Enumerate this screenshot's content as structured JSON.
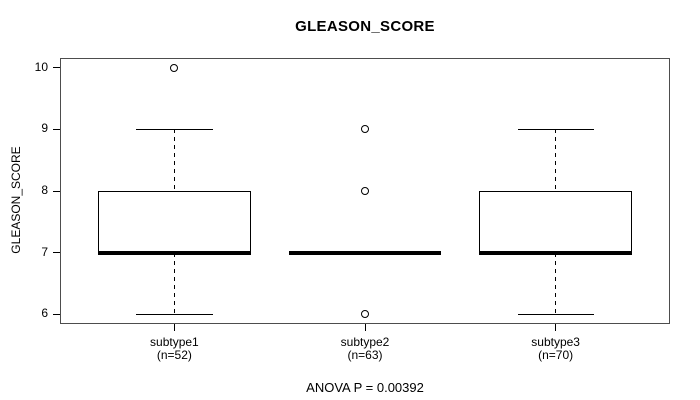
{
  "chart_data": {
    "type": "boxplot",
    "title": "GLEASON_SCORE",
    "ylabel": "GLEASON_SCORE",
    "xlabel": "",
    "annotation": "ANOVA P = 0.00392",
    "anova_p": 0.00392,
    "ylim": [
      5.84,
      10.16
    ],
    "yticks": [
      6,
      7,
      8,
      9,
      10
    ],
    "xlim": [
      0.4,
      3.6
    ],
    "grid": false,
    "legend": "none",
    "line_color": "#000000",
    "frame_color": "#4d4d4d",
    "box_width": 0.8,
    "cap_width": 0.4,
    "groups": [
      {
        "label": "subtype1",
        "n_label": "(n=52)",
        "n": 52,
        "position": 1,
        "whisker_low": 6,
        "q1": 7,
        "median": 7,
        "q3": 8,
        "whisker_high": 9,
        "outliers": [
          10
        ]
      },
      {
        "label": "subtype2",
        "n_label": "(n=63)",
        "n": 63,
        "position": 2,
        "whisker_low": 7,
        "q1": 7,
        "median": 7,
        "q3": 7,
        "whisker_high": 7,
        "outliers": [
          9,
          8,
          6
        ]
      },
      {
        "label": "subtype3",
        "n_label": "(n=70)",
        "n": 70,
        "position": 3,
        "whisker_low": 6,
        "q1": 7,
        "median": 7,
        "q3": 8,
        "whisker_high": 9,
        "outliers": []
      }
    ]
  }
}
